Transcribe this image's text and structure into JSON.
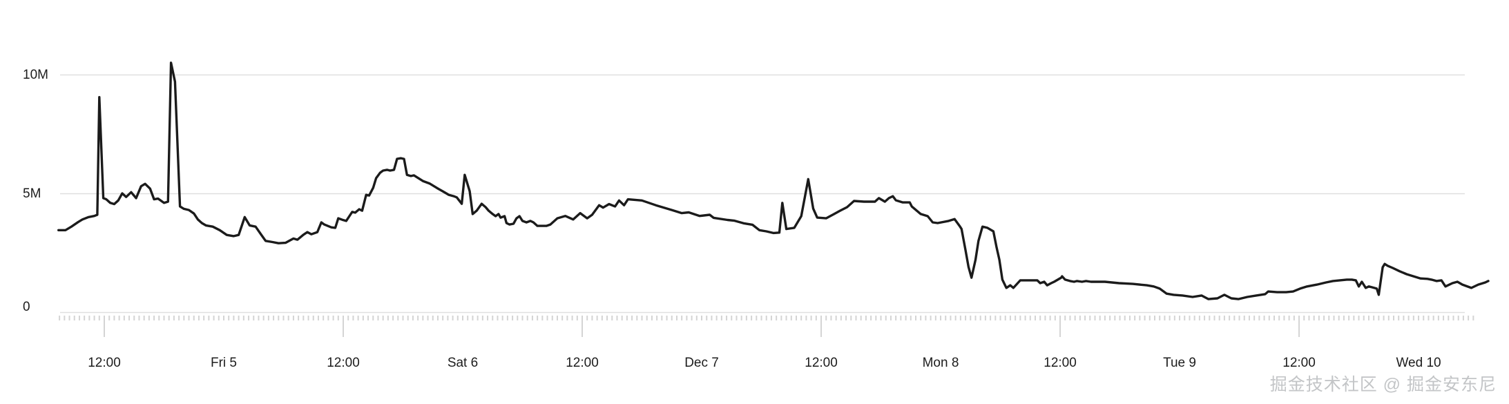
{
  "page": {
    "background": "#ffffff"
  },
  "watermark": {
    "text": "掘金技术社区 @ 掘金安东尼"
  },
  "chart_data": {
    "type": "line",
    "title": "",
    "xlabel": "",
    "ylabel": "",
    "x_unit": "hours since Thu Dec 4 00:00",
    "y_unit": "millions (M)",
    "ylim": [
      0,
      10.75
    ],
    "xlim_hours": [
      6.5,
      151.5
    ],
    "grid": "horizontal-only",
    "legend": "none",
    "line_color": "#1b1b1b",
    "grid_color": "#dfdfdf",
    "tick_color": "#d4d4d4",
    "label_color": "#1c1c1c",
    "minor_tick_interval_hours": 0.5,
    "major_tick_interval_hours": 24,
    "y_ticks": [
      {
        "value": 0,
        "label": "0"
      },
      {
        "value": 5,
        "label": "5M"
      },
      {
        "value": 10,
        "label": "10M"
      }
    ],
    "x_labels": [
      {
        "t": 12,
        "label": "12:00"
      },
      {
        "t": 24,
        "label": "Fri 5"
      },
      {
        "t": 36,
        "label": "12:00"
      },
      {
        "t": 48,
        "label": "Sat 6"
      },
      {
        "t": 60,
        "label": "12:00"
      },
      {
        "t": 72,
        "label": "Dec 7"
      },
      {
        "t": 84,
        "label": "12:00"
      },
      {
        "t": 96,
        "label": "Mon 8"
      },
      {
        "t": 108,
        "label": "12:00"
      },
      {
        "t": 120,
        "label": "Tue 9"
      },
      {
        "t": 132,
        "label": "12:00"
      },
      {
        "t": 144,
        "label": "Wed 10"
      }
    ],
    "series": [
      {
        "name": "value",
        "points": [
          [
            7.4,
            3.45
          ],
          [
            8.1,
            3.45
          ],
          [
            8.7,
            3.6
          ],
          [
            9.4,
            3.8
          ],
          [
            9.8,
            3.9
          ],
          [
            10.4,
            4.0
          ],
          [
            11.0,
            4.05
          ],
          [
            11.3,
            4.1
          ],
          [
            11.5,
            9.05
          ],
          [
            11.9,
            4.8
          ],
          [
            12.2,
            4.75
          ],
          [
            12.6,
            4.6
          ],
          [
            13.0,
            4.55
          ],
          [
            13.4,
            4.7
          ],
          [
            13.8,
            5.0
          ],
          [
            14.2,
            4.85
          ],
          [
            14.7,
            5.05
          ],
          [
            15.2,
            4.8
          ],
          [
            15.7,
            5.3
          ],
          [
            16.1,
            5.4
          ],
          [
            16.6,
            5.2
          ],
          [
            17.0,
            4.75
          ],
          [
            17.4,
            4.78
          ],
          [
            18.0,
            4.6
          ],
          [
            18.4,
            4.65
          ],
          [
            18.7,
            10.5
          ],
          [
            19.1,
            9.7
          ],
          [
            19.6,
            4.45
          ],
          [
            20.0,
            4.35
          ],
          [
            20.5,
            4.3
          ],
          [
            21.0,
            4.15
          ],
          [
            21.4,
            3.9
          ],
          [
            21.8,
            3.75
          ],
          [
            22.2,
            3.65
          ],
          [
            22.9,
            3.6
          ],
          [
            23.6,
            3.45
          ],
          [
            24.3,
            3.25
          ],
          [
            25.0,
            3.2
          ],
          [
            25.5,
            3.25
          ],
          [
            26.1,
            4.0
          ],
          [
            26.6,
            3.65
          ],
          [
            27.2,
            3.6
          ],
          [
            27.7,
            3.3
          ],
          [
            28.2,
            3.0
          ],
          [
            28.9,
            2.95
          ],
          [
            29.5,
            2.9
          ],
          [
            30.2,
            2.92
          ],
          [
            31.0,
            3.1
          ],
          [
            31.4,
            3.05
          ],
          [
            32.0,
            3.26
          ],
          [
            32.4,
            3.37
          ],
          [
            32.8,
            3.28
          ],
          [
            33.4,
            3.37
          ],
          [
            33.8,
            3.78
          ],
          [
            34.1,
            3.69
          ],
          [
            34.8,
            3.57
          ],
          [
            35.2,
            3.55
          ],
          [
            35.5,
            3.95
          ],
          [
            35.9,
            3.89
          ],
          [
            36.3,
            3.84
          ],
          [
            36.9,
            4.22
          ],
          [
            37.2,
            4.19
          ],
          [
            37.6,
            4.33
          ],
          [
            37.9,
            4.27
          ],
          [
            38.3,
            4.94
          ],
          [
            38.6,
            4.91
          ],
          [
            39.0,
            5.23
          ],
          [
            39.3,
            5.64
          ],
          [
            39.7,
            5.87
          ],
          [
            40.0,
            5.96
          ],
          [
            40.4,
            5.99
          ],
          [
            40.7,
            5.96
          ],
          [
            41.1,
            5.99
          ],
          [
            41.4,
            6.45
          ],
          [
            41.8,
            6.48
          ],
          [
            42.1,
            6.45
          ],
          [
            42.4,
            5.78
          ],
          [
            42.8,
            5.73
          ],
          [
            43.1,
            5.76
          ],
          [
            44.0,
            5.52
          ],
          [
            44.7,
            5.41
          ],
          [
            45.4,
            5.23
          ],
          [
            46.1,
            5.06
          ],
          [
            46.6,
            4.94
          ],
          [
            47.1,
            4.88
          ],
          [
            47.4,
            4.83
          ],
          [
            47.9,
            4.56
          ],
          [
            48.2,
            5.78
          ],
          [
            48.7,
            5.09
          ],
          [
            49.0,
            4.13
          ],
          [
            49.4,
            4.27
          ],
          [
            49.9,
            4.56
          ],
          [
            50.3,
            4.42
          ],
          [
            50.6,
            4.27
          ],
          [
            51.0,
            4.13
          ],
          [
            51.3,
            4.04
          ],
          [
            51.6,
            4.13
          ],
          [
            51.8,
            3.98
          ],
          [
            52.2,
            4.04
          ],
          [
            52.4,
            3.75
          ],
          [
            52.7,
            3.69
          ],
          [
            53.1,
            3.72
          ],
          [
            53.4,
            3.95
          ],
          [
            53.7,
            4.04
          ],
          [
            54.0,
            3.84
          ],
          [
            54.4,
            3.78
          ],
          [
            54.8,
            3.84
          ],
          [
            55.1,
            3.78
          ],
          [
            55.5,
            3.63
          ],
          [
            56.0,
            3.63
          ],
          [
            56.4,
            3.63
          ],
          [
            56.8,
            3.69
          ],
          [
            57.5,
            3.95
          ],
          [
            58.3,
            4.05
          ],
          [
            59.1,
            3.9
          ],
          [
            59.8,
            4.17
          ],
          [
            60.5,
            3.95
          ],
          [
            61.0,
            4.1
          ],
          [
            61.7,
            4.5
          ],
          [
            62.1,
            4.4
          ],
          [
            62.7,
            4.55
          ],
          [
            63.3,
            4.45
          ],
          [
            63.7,
            4.7
          ],
          [
            64.2,
            4.5
          ],
          [
            64.6,
            4.75
          ],
          [
            66.0,
            4.7
          ],
          [
            67.4,
            4.5
          ],
          [
            69.0,
            4.3
          ],
          [
            70.0,
            4.17
          ],
          [
            70.7,
            4.2
          ],
          [
            71.8,
            4.05
          ],
          [
            72.8,
            4.1
          ],
          [
            73.2,
            3.97
          ],
          [
            74.6,
            3.88
          ],
          [
            75.3,
            3.85
          ],
          [
            76.2,
            3.74
          ],
          [
            77.1,
            3.68
          ],
          [
            77.8,
            3.45
          ],
          [
            78.5,
            3.4
          ],
          [
            79.2,
            3.33
          ],
          [
            79.8,
            3.35
          ],
          [
            80.1,
            4.6
          ],
          [
            80.5,
            3.5
          ],
          [
            81.3,
            3.55
          ],
          [
            82.0,
            4.04
          ],
          [
            82.7,
            5.6
          ],
          [
            83.2,
            4.36
          ],
          [
            83.6,
            3.98
          ],
          [
            84.5,
            3.95
          ],
          [
            85.3,
            4.13
          ],
          [
            85.9,
            4.27
          ],
          [
            86.6,
            4.42
          ],
          [
            87.3,
            4.68
          ],
          [
            88.3,
            4.65
          ],
          [
            89.4,
            4.65
          ],
          [
            89.8,
            4.8
          ],
          [
            90.4,
            4.65
          ],
          [
            90.8,
            4.8
          ],
          [
            91.2,
            4.88
          ],
          [
            91.5,
            4.71
          ],
          [
            92.2,
            4.62
          ],
          [
            92.9,
            4.62
          ],
          [
            93.1,
            4.45
          ],
          [
            94.0,
            4.13
          ],
          [
            94.7,
            4.04
          ],
          [
            95.2,
            3.78
          ],
          [
            95.7,
            3.75
          ],
          [
            96.8,
            3.84
          ],
          [
            97.4,
            3.92
          ],
          [
            97.9,
            3.63
          ],
          [
            98.1,
            3.5
          ],
          [
            98.5,
            2.6
          ],
          [
            98.8,
            1.9
          ],
          [
            99.1,
            1.45
          ],
          [
            99.5,
            2.2
          ],
          [
            99.8,
            3.0
          ],
          [
            100.2,
            3.6
          ],
          [
            100.7,
            3.55
          ],
          [
            101.3,
            3.4
          ],
          [
            101.6,
            2.76
          ],
          [
            101.9,
            2.2
          ],
          [
            102.2,
            1.37
          ],
          [
            102.6,
            1.02
          ],
          [
            103.0,
            1.13
          ],
          [
            103.3,
            1.02
          ],
          [
            104.0,
            1.34
          ],
          [
            104.8,
            1.34
          ],
          [
            105.7,
            1.34
          ],
          [
            106.0,
            1.22
          ],
          [
            106.4,
            1.28
          ],
          [
            106.7,
            1.13
          ],
          [
            107.1,
            1.22
          ],
          [
            107.4,
            1.28
          ],
          [
            108.1,
            1.45
          ],
          [
            108.2,
            1.51
          ],
          [
            108.5,
            1.37
          ],
          [
            109.0,
            1.31
          ],
          [
            109.4,
            1.28
          ],
          [
            109.7,
            1.31
          ],
          [
            110.2,
            1.28
          ],
          [
            110.6,
            1.31
          ],
          [
            111.1,
            1.28
          ],
          [
            112.5,
            1.28
          ],
          [
            113.9,
            1.22
          ],
          [
            115.3,
            1.19
          ],
          [
            116.7,
            1.13
          ],
          [
            117.4,
            1.08
          ],
          [
            118.0,
            0.99
          ],
          [
            118.7,
            0.78
          ],
          [
            119.4,
            0.73
          ],
          [
            120.3,
            0.7
          ],
          [
            121.3,
            0.64
          ],
          [
            122.2,
            0.7
          ],
          [
            122.9,
            0.55
          ],
          [
            123.8,
            0.58
          ],
          [
            124.5,
            0.73
          ],
          [
            125.2,
            0.58
          ],
          [
            125.9,
            0.55
          ],
          [
            126.8,
            0.64
          ],
          [
            127.7,
            0.7
          ],
          [
            128.6,
            0.76
          ],
          [
            128.9,
            0.87
          ],
          [
            129.8,
            0.84
          ],
          [
            130.7,
            0.84
          ],
          [
            131.4,
            0.87
          ],
          [
            132.1,
            0.99
          ],
          [
            132.8,
            1.08
          ],
          [
            133.8,
            1.16
          ],
          [
            134.7,
            1.25
          ],
          [
            135.4,
            1.31
          ],
          [
            136.1,
            1.34
          ],
          [
            136.8,
            1.37
          ],
          [
            137.3,
            1.37
          ],
          [
            137.7,
            1.34
          ],
          [
            138.0,
            1.08
          ],
          [
            138.3,
            1.28
          ],
          [
            138.7,
            1.02
          ],
          [
            139.0,
            1.08
          ],
          [
            139.3,
            1.05
          ],
          [
            139.8,
            0.99
          ],
          [
            140.0,
            0.73
          ],
          [
            140.4,
            1.89
          ],
          [
            140.6,
            2.03
          ],
          [
            140.9,
            1.95
          ],
          [
            141.4,
            1.86
          ],
          [
            142.1,
            1.72
          ],
          [
            142.8,
            1.6
          ],
          [
            143.5,
            1.51
          ],
          [
            144.2,
            1.42
          ],
          [
            144.9,
            1.4
          ],
          [
            145.3,
            1.37
          ],
          [
            145.8,
            1.31
          ],
          [
            146.3,
            1.34
          ],
          [
            146.7,
            1.08
          ],
          [
            147.4,
            1.22
          ],
          [
            147.9,
            1.28
          ],
          [
            148.4,
            1.16
          ],
          [
            149.3,
            1.02
          ],
          [
            150.0,
            1.16
          ],
          [
            150.7,
            1.25
          ],
          [
            151.0,
            1.31
          ]
        ]
      }
    ]
  }
}
